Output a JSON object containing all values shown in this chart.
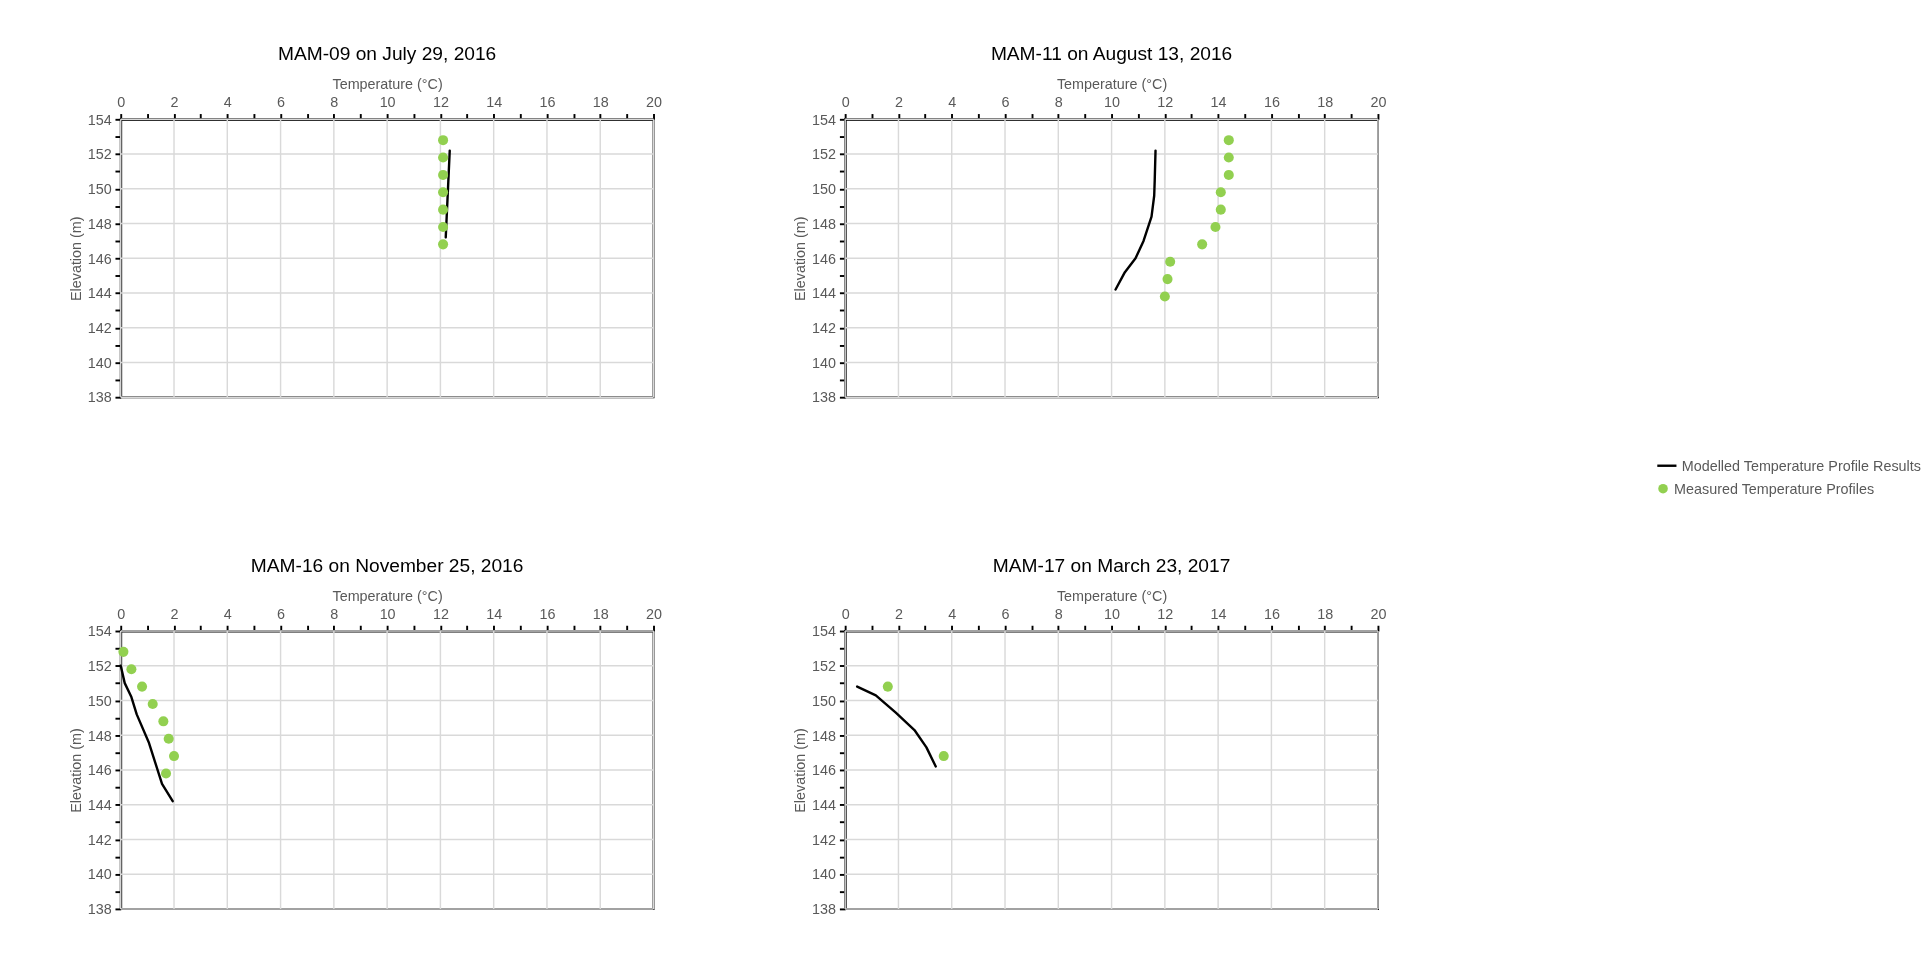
{
  "chart_data": [
    {
      "type": "scatter",
      "title": "MAM-09 on July 29, 2016",
      "xlabel": "Temperature (°C)",
      "ylabel": "Elevation (m)",
      "grid": true,
      "legend": "right",
      "marker": "circle",
      "xlim": [
        0,
        20
      ],
      "xticks": [
        0,
        {
          "value": 1,
          "label": null
        },
        2,
        {
          "value": 3,
          "label": null
        },
        4,
        {
          "value": 5,
          "label": null
        },
        6,
        {
          "value": 7,
          "label": null
        },
        8,
        {
          "value": 9,
          "label": null
        },
        10,
        {
          "value": 11,
          "label": null
        },
        12,
        {
          "value": 13,
          "label": null
        },
        14,
        {
          "value": 15,
          "label": null
        },
        16,
        {
          "value": 17,
          "label": null
        },
        18,
        {
          "value": 19,
          "label": null
        },
        20
      ],
      "ylim": [
        138,
        154
      ],
      "yticks": [
        138,
        {
          "value": 139,
          "label": null
        },
        140,
        {
          "value": 141,
          "label": null
        },
        142,
        {
          "value": 143,
          "label": null
        },
        144,
        {
          "value": 145,
          "label": null
        },
        146,
        {
          "value": 147,
          "label": null
        },
        148,
        {
          "value": 149,
          "label": null
        },
        150,
        {
          "value": 151,
          "label": null
        },
        152,
        {
          "value": 153,
          "label": null
        },
        154
      ],
      "series": [
        {
          "name": "Modelled Temperature Profile Results",
          "type": "line",
          "marker": "none",
          "color": "#000000",
          "x": [
            12.2,
            12.35
          ],
          "values": [
            147.2,
            152.2
          ]
        },
        {
          "name": "Measured Temperature Profiles",
          "type": "scatter",
          "color": "#92d050",
          "x": [
            12.1,
            12.1,
            12.1,
            12.1,
            12.1,
            12.1,
            12.1
          ],
          "values": [
            152.8,
            151.8,
            150.8,
            149.8,
            148.8,
            147.8,
            146.8
          ]
        }
      ]
    },
    {
      "type": "scatter",
      "title": "MAM-11 on August 13, 2016",
      "xlabel": "Temperature (°C)",
      "ylabel": "Elevation (m)",
      "grid": true,
      "legend": false,
      "marker": "circle",
      "xlim": [
        0,
        20
      ],
      "xticks": [
        0,
        {
          "value": 1,
          "label": null
        },
        2,
        {
          "value": 3,
          "label": null
        },
        4,
        {
          "value": 5,
          "label": null
        },
        6,
        {
          "value": 7,
          "label": null
        },
        8,
        {
          "value": 9,
          "label": null
        },
        10,
        {
          "value": 11,
          "label": null
        },
        12,
        {
          "value": 13,
          "label": null
        },
        14,
        {
          "value": 15,
          "label": null
        },
        16,
        {
          "value": 17,
          "label": null
        },
        18,
        {
          "value": 19,
          "label": null
        },
        20
      ],
      "ylim": [
        138,
        154
      ],
      "yticks": [
        138,
        {
          "value": 139,
          "label": null
        },
        140,
        {
          "value": 141,
          "label": null
        },
        142,
        {
          "value": 143,
          "label": null
        },
        144,
        {
          "value": 145,
          "label": null
        },
        146,
        {
          "value": 147,
          "label": null
        },
        148,
        {
          "value": 149,
          "label": null
        },
        150,
        {
          "value": 151,
          "label": null
        },
        152,
        {
          "value": 153,
          "label": null
        },
        154
      ],
      "series": [
        {
          "type": "line",
          "marker": "none",
          "color": "#000000",
          "x": [
            10.15,
            10.5,
            10.9,
            11.2,
            11.5,
            11.6,
            11.62,
            11.65
          ],
          "values": [
            144.2,
            145.2,
            146.0,
            147.0,
            148.4,
            149.6,
            150.5,
            152.2
          ]
        },
        {
          "type": "scatter",
          "color": "#92d050",
          "x": [
            14.4,
            14.4,
            14.4,
            14.1,
            14.1,
            13.9,
            13.4,
            12.2,
            12.1,
            12.0
          ],
          "values": [
            152.8,
            151.8,
            150.8,
            149.8,
            148.8,
            147.8,
            146.8,
            145.8,
            144.8,
            143.8
          ]
        }
      ]
    },
    {
      "type": "scatter",
      "title": "MAM-16 on November 25, 2016",
      "xlabel": "Temperature (°C)",
      "ylabel": "Elevation (m)",
      "grid": true,
      "legend": false,
      "marker": "circle",
      "xlim": [
        0,
        20
      ],
      "xticks": [
        0,
        {
          "value": 1,
          "label": null
        },
        2,
        {
          "value": 3,
          "label": null
        },
        4,
        {
          "value": 5,
          "label": null
        },
        6,
        {
          "value": 7,
          "label": null
        },
        8,
        {
          "value": 9,
          "label": null
        },
        10,
        {
          "value": 11,
          "label": null
        },
        12,
        {
          "value": 13,
          "label": null
        },
        14,
        {
          "value": 15,
          "label": null
        },
        16,
        {
          "value": 17,
          "label": null
        },
        18,
        {
          "value": 19,
          "label": null
        },
        20
      ],
      "ylim": [
        138,
        154
      ],
      "yticks": [
        138,
        {
          "value": 139,
          "label": null
        },
        140,
        {
          "value": 141,
          "label": null
        },
        142,
        {
          "value": 143,
          "label": null
        },
        144,
        {
          "value": 145,
          "label": null
        },
        146,
        {
          "value": 147,
          "label": null
        },
        148,
        {
          "value": 149,
          "label": null
        },
        150,
        {
          "value": 151,
          "label": null
        },
        152,
        {
          "value": 153,
          "label": null
        },
        154
      ],
      "series": [
        {
          "type": "line",
          "marker": "none",
          "color": "#000000",
          "x": [
            0,
            0.15,
            0.4,
            0.6,
            1.05,
            1.55,
            1.95
          ],
          "values": [
            152.0,
            151.0,
            150.2,
            149.2,
            147.6,
            145.2,
            144.2
          ]
        },
        {
          "type": "scatter",
          "color": "#92d050",
          "x": [
            0.1,
            0.4,
            0.8,
            1.2,
            1.6,
            1.8,
            2.0,
            1.7
          ],
          "values": [
            152.8,
            151.8,
            150.8,
            149.8,
            148.8,
            147.8,
            146.8,
            145.8
          ]
        }
      ]
    },
    {
      "type": "scatter",
      "title": "MAM-17 on March 23, 2017",
      "xlabel": "Temperature (°C)",
      "ylabel": "Elevation (m)",
      "grid": true,
      "legend": false,
      "marker": "circle",
      "xlim": [
        0,
        20
      ],
      "xticks": [
        0,
        {
          "value": 1,
          "label": null
        },
        2,
        {
          "value": 3,
          "label": null
        },
        4,
        {
          "value": 5,
          "label": null
        },
        6,
        {
          "value": 7,
          "label": null
        },
        8,
        {
          "value": 9,
          "label": null
        },
        10,
        {
          "value": 11,
          "label": null
        },
        12,
        {
          "value": 13,
          "label": null
        },
        14,
        {
          "value": 15,
          "label": null
        },
        16,
        {
          "value": 17,
          "label": null
        },
        18,
        {
          "value": 19,
          "label": null
        },
        20
      ],
      "ylim": [
        138,
        154
      ],
      "yticks": [
        138,
        {
          "value": 139,
          "label": null
        },
        140,
        {
          "value": 141,
          "label": null
        },
        142,
        {
          "value": 143,
          "label": null
        },
        144,
        {
          "value": 145,
          "label": null
        },
        146,
        {
          "value": 147,
          "label": null
        },
        148,
        {
          "value": 149,
          "label": null
        },
        150,
        {
          "value": 151,
          "label": null
        },
        152,
        {
          "value": 153,
          "label": null
        },
        154
      ],
      "series": [
        {
          "type": "line",
          "marker": "none",
          "color": "#000000",
          "x": [
            0.45,
            1.15,
            1.9,
            2.6,
            3.05,
            3.4
          ],
          "values": [
            150.8,
            150.3,
            149.3,
            148.3,
            147.3,
            146.2
          ]
        },
        {
          "type": "scatter",
          "color": "#92d050",
          "x": [
            1.6,
            3.7
          ],
          "values": [
            150.8,
            146.8
          ]
        }
      ]
    }
  ]
}
